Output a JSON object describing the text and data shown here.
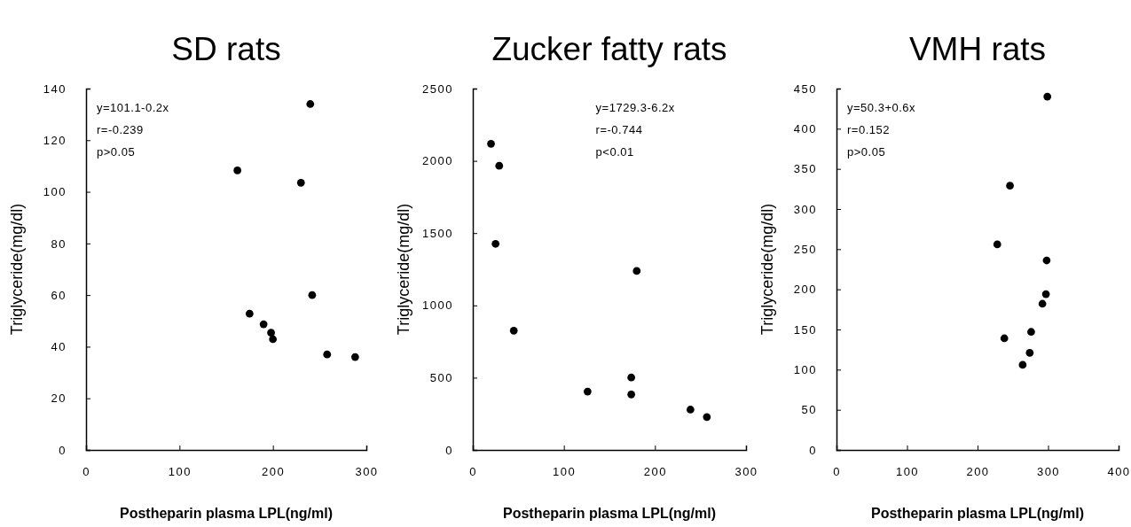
{
  "chart_data": [
    {
      "type": "scatter",
      "title": "SD rats",
      "xlabel": "Postheparin plasma LPL(ng/ml)",
      "ylabel": "Triglyceride(mg/dl)",
      "xlim": [
        0,
        300
      ],
      "xticks": [
        0,
        100,
        200,
        300
      ],
      "ylim": [
        0,
        140
      ],
      "yticks": [
        0,
        20,
        40,
        60,
        80,
        100,
        120,
        140
      ],
      "marker": "circle",
      "color": "#000000",
      "x": [
        162,
        175,
        190,
        198,
        200,
        230,
        240,
        242,
        258,
        288
      ],
      "values": [
        108.3,
        52.8,
        48.7,
        45.4,
        42.9,
        103.5,
        134,
        60,
        37,
        36
      ],
      "annotations": [
        "y=101.1-0.2x",
        "r=-0.239",
        "p>0.05"
      ]
    },
    {
      "type": "scatter",
      "title": "Zucker fatty rats",
      "xlabel": "Postheparin plasma LPL(ng/ml)",
      "ylabel": "Triglyceride(mg/dl)",
      "xlim": [
        0,
        300
      ],
      "xticks": [
        0,
        100,
        200,
        300
      ],
      "ylim": [
        0,
        2500
      ],
      "yticks": [
        0,
        500,
        1000,
        1500,
        2000,
        2500
      ],
      "marker": "circle",
      "color": "#000000",
      "x": [
        20,
        29,
        25,
        45,
        126,
        174,
        174,
        180,
        239,
        257
      ],
      "values": [
        2118,
        1966,
        1426,
        825,
        404,
        501,
        384,
        1238,
        279,
        228
      ],
      "annotations": [
        "y=1729.3-6.2x",
        "r=-0.744",
        "p<0.01"
      ]
    },
    {
      "type": "scatter",
      "title": "VMH rats",
      "xlabel": "Postheparin plasma LPL(ng/ml)",
      "ylabel": "Triglyceride(mg/dl)",
      "xlim": [
        0,
        400
      ],
      "xticks": [
        0,
        100,
        200,
        300,
        400
      ],
      "ylim": [
        0,
        450
      ],
      "yticks": [
        0,
        50,
        100,
        150,
        200,
        250,
        300,
        350,
        400,
        450
      ],
      "marker": "circle",
      "color": "#000000",
      "x": [
        299,
        246,
        228,
        298,
        297,
        292,
        276,
        238,
        274,
        264
      ],
      "values": [
        440,
        329,
        256,
        236,
        194,
        182,
        147,
        139,
        121,
        106
      ],
      "annotations": [
        "y=50.3+0.6x",
        "r=0.152",
        "p>0.05"
      ]
    }
  ]
}
